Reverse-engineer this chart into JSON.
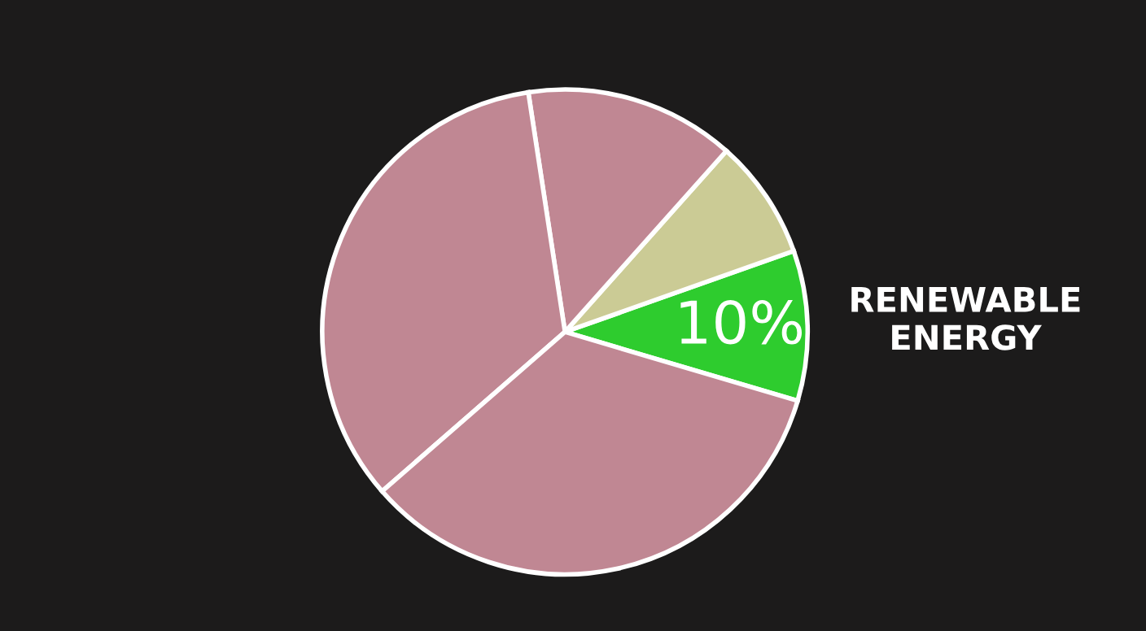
{
  "chart_data": {
    "type": "pie",
    "categories": [
      "RENEWABLE ENERGY",
      null,
      null,
      null,
      null
    ],
    "values": [
      10,
      8,
      14,
      34,
      34
    ],
    "colors": [
      "#2ecc2e",
      "#cbcb95",
      "#c08793",
      "#c08793",
      "#c08793"
    ],
    "value_labels": [
      "10%",
      null,
      null,
      null,
      null
    ],
    "legend": false
  }
}
